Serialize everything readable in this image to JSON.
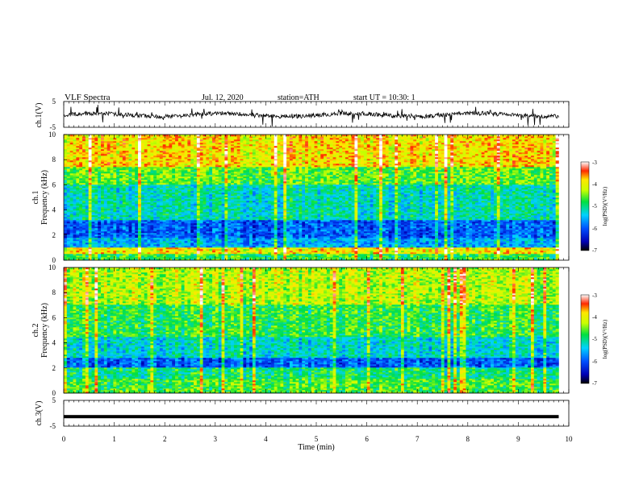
{
  "header": {
    "title": "VLF Spectra",
    "date": "Jul. 12, 2020",
    "station": "station=ATH",
    "start_ut": "start UT =  10:30: 1"
  },
  "chart_data": [
    {
      "type": "line",
      "name": "ch1-waveform",
      "ylabel": "ch.1(V)",
      "ylim": [
        -5,
        5
      ],
      "yticks": [
        "5",
        "-5"
      ],
      "xlim": [
        0,
        10
      ]
    },
    {
      "type": "heatmap",
      "name": "ch1-spectrogram",
      "ylabel_channel": "ch.1",
      "ylabel": "Frequency (kHz)",
      "ylim": [
        0,
        10
      ],
      "yticks": [
        "0",
        "2",
        "4",
        "6",
        "8",
        "10"
      ],
      "xlim": [
        0,
        10
      ],
      "data_end_min": 9.8,
      "colorbar": {
        "label": "log(PSD)(V²/Hz)",
        "range": [
          -7,
          -3
        ],
        "ticks": [
          "-3",
          "-4",
          "-5",
          "-6",
          "-7"
        ]
      },
      "bands": [
        {
          "f_low": 0,
          "f_high": 0.5,
          "level": -4.8
        },
        {
          "f_low": 0.5,
          "f_high": 1.0,
          "level": -4.0
        },
        {
          "f_low": 1.0,
          "f_high": 1.8,
          "level": -5.6
        },
        {
          "f_low": 1.8,
          "f_high": 3.2,
          "level": -6.0
        },
        {
          "f_low": 3.2,
          "f_high": 6.0,
          "level": -5.2
        },
        {
          "f_low": 6.0,
          "f_high": 7.5,
          "level": -4.6
        },
        {
          "f_low": 7.5,
          "f_high": 10.0,
          "level": -3.9
        }
      ]
    },
    {
      "type": "heatmap",
      "name": "ch2-spectrogram",
      "ylabel_channel": "ch.2",
      "ylabel": "Frequency (kHz)",
      "ylim": [
        0,
        10
      ],
      "yticks": [
        "0",
        "2",
        "4",
        "6",
        "8",
        "10"
      ],
      "xlim": [
        0,
        10
      ],
      "data_end_min": 9.8,
      "colorbar": {
        "label": "log(PSD)(V²/Hz)",
        "range": [
          -7,
          -3
        ],
        "ticks": [
          "-3",
          "-4",
          "-5",
          "-6",
          "-7"
        ]
      },
      "bands": [
        {
          "f_low": 0,
          "f_high": 1.2,
          "level": -4.7
        },
        {
          "f_low": 1.2,
          "f_high": 2.0,
          "level": -5.0
        },
        {
          "f_low": 2.0,
          "f_high": 2.8,
          "level": -6.0
        },
        {
          "f_low": 2.8,
          "f_high": 4.5,
          "level": -5.3
        },
        {
          "f_low": 4.5,
          "f_high": 7.0,
          "level": -4.8
        },
        {
          "f_low": 7.0,
          "f_high": 10.0,
          "level": -4.3
        }
      ]
    },
    {
      "type": "line",
      "name": "ch3-waveform",
      "ylabel": "ch.3(V)",
      "ylim": [
        -5,
        5
      ],
      "yticks": [
        "5",
        "-5"
      ],
      "xlim": [
        0,
        10
      ],
      "level": -1.3
    }
  ],
  "xaxis": {
    "label": "Time (min)",
    "ticks": [
      "0",
      "1",
      "2",
      "3",
      "4",
      "5",
      "6",
      "7",
      "8",
      "9",
      "10"
    ]
  }
}
